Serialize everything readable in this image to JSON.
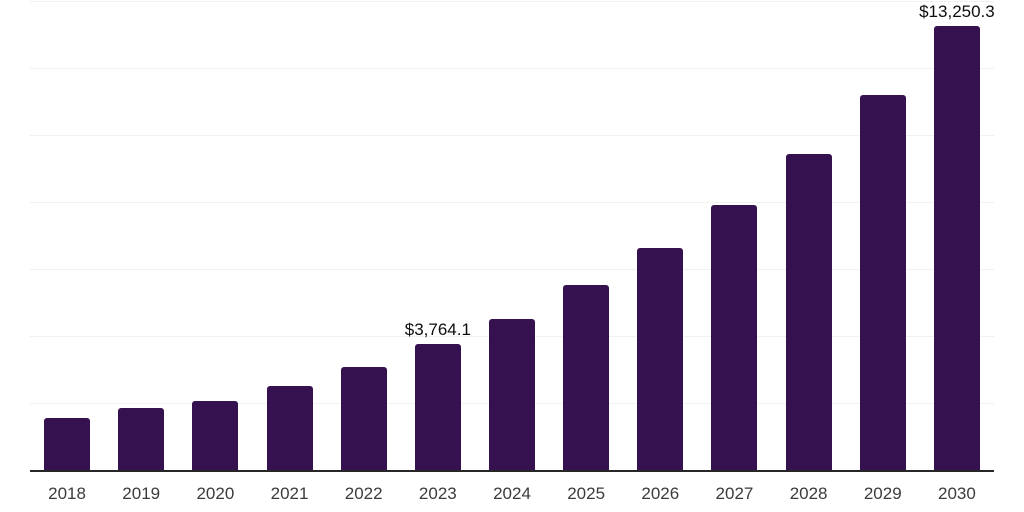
{
  "chart_data": {
    "type": "bar",
    "title": "",
    "xlabel": "",
    "ylabel": "",
    "categories": [
      "2018",
      "2019",
      "2020",
      "2021",
      "2022",
      "2023",
      "2024",
      "2025",
      "2026",
      "2027",
      "2028",
      "2029",
      "2030"
    ],
    "values": [
      1560,
      1855,
      2065,
      2510,
      3080,
      3764.1,
      4520,
      5510,
      6620,
      7900,
      9430,
      11190,
      13250.3
    ],
    "value_labels": [
      "",
      "",
      "",
      "",
      "",
      "$3,764.1",
      "",
      "",
      "",
      "",
      "",
      "",
      "$13,250.3"
    ],
    "ylim": [
      0,
      14000
    ],
    "gridline_interval": 2000,
    "grid": "horizontal-only",
    "legend": "none",
    "y_axis_tick_labels": "none"
  },
  "colors": {
    "bar": "#36114F",
    "axis_line": "#262626",
    "gridline": "#F1F1F1",
    "tick_label": "#3B3B3B",
    "value_label": "#0D0D0D",
    "background": "#FFFFFF"
  }
}
